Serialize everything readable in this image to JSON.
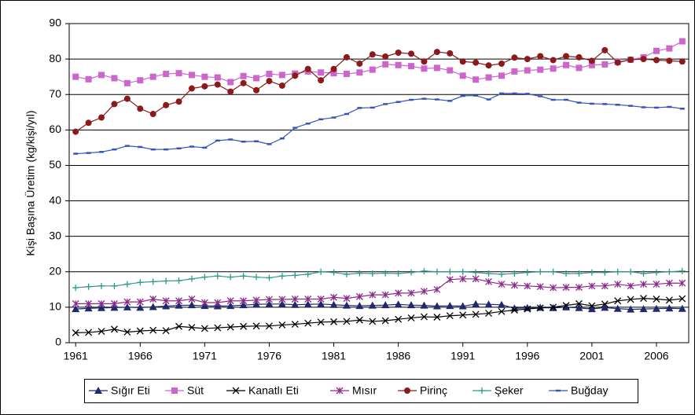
{
  "chart_data": {
    "type": "line",
    "y_label": "Kişi Başına Üretim (kg/kişi/yıl)",
    "x": [
      1961,
      1962,
      1963,
      1964,
      1965,
      1966,
      1967,
      1968,
      1969,
      1970,
      1971,
      1972,
      1973,
      1974,
      1975,
      1976,
      1977,
      1978,
      1979,
      1980,
      1981,
      1982,
      1983,
      1984,
      1985,
      1986,
      1987,
      1988,
      1989,
      1990,
      1991,
      1992,
      1993,
      1994,
      1995,
      1996,
      1997,
      1998,
      1999,
      2000,
      2001,
      2002,
      2003,
      2004,
      2005,
      2006,
      2007,
      2008
    ],
    "xlim": [
      1960.5,
      2008.5
    ],
    "xticks": [
      1961,
      1966,
      1971,
      1976,
      1981,
      1986,
      1991,
      1996,
      2001,
      2006
    ],
    "ylim": [
      0,
      90
    ],
    "yticks": [
      0,
      10,
      20,
      30,
      40,
      50,
      60,
      70,
      80,
      90
    ],
    "grid": true,
    "legend": "bottom",
    "series": [
      {
        "name": "Sığır Eti",
        "color": "#1f2a6e",
        "marker": "triangle",
        "values": [
          9.5,
          9.7,
          9.8,
          9.9,
          10.0,
          9.9,
          10.1,
          10.3,
          10.5,
          10.6,
          10.4,
          10.3,
          10.4,
          10.6,
          10.8,
          10.9,
          10.9,
          10.7,
          10.8,
          10.9,
          10.7,
          10.5,
          10.4,
          10.5,
          10.6,
          10.8,
          10.6,
          10.5,
          10.3,
          10.4,
          10.3,
          10.9,
          10.8,
          10.7,
          9.7,
          9.8,
          9.9,
          9.8,
          10.0,
          9.8,
          9.5,
          9.9,
          9.6,
          9.4,
          9.5,
          9.6,
          9.7,
          9.6
        ]
      },
      {
        "name": "Süt",
        "color": "#cc66cc",
        "marker": "square",
        "values": [
          75,
          74.3,
          75.5,
          74.6,
          73.2,
          74,
          75,
          75.8,
          76,
          75.5,
          75,
          74.8,
          73.5,
          75.2,
          74.6,
          75.8,
          75.5,
          75.9,
          76.5,
          76.2,
          76,
          75.8,
          76.2,
          77,
          78.5,
          78.3,
          78,
          77.3,
          77.5,
          76.8,
          75.3,
          74.2,
          74.8,
          75.3,
          76.5,
          76.8,
          77,
          77.3,
          78.3,
          77.5,
          78.3,
          78.5,
          79.2,
          79.8,
          80.5,
          82.3,
          83,
          85
        ]
      },
      {
        "name": "Kanatlı Eti",
        "color": "#000000",
        "marker": "x",
        "values": [
          2.8,
          2.9,
          3.2,
          3.8,
          3.0,
          3.3,
          3.5,
          3.4,
          4.6,
          4.3,
          4.0,
          4.2,
          4.4,
          4.6,
          4.7,
          4.7,
          5.0,
          5.2,
          5.5,
          5.8,
          5.9,
          6.0,
          6.4,
          6.0,
          6.2,
          6.6,
          7.0,
          7.3,
          7.2,
          7.6,
          7.8,
          8.0,
          8.3,
          8.8,
          9.2,
          9.5,
          9.8,
          10.0,
          10.5,
          11.0,
          10.4,
          10.9,
          11.8,
          12.2,
          12.5,
          12.3,
          12.0,
          12.4
        ]
      },
      {
        "name": "Mısır",
        "color": "#8b2a8b",
        "marker": "star",
        "values": [
          11,
          11,
          11,
          11,
          11.5,
          11.5,
          12.3,
          11.8,
          11.8,
          12.3,
          11.3,
          11.3,
          11.8,
          11.8,
          12,
          12.2,
          12.2,
          12.3,
          12.3,
          12.3,
          12.8,
          12.5,
          13,
          13.5,
          13.5,
          14,
          14,
          14.5,
          15,
          17.8,
          18,
          18,
          17.2,
          16.5,
          16.2,
          16,
          15.8,
          15.5,
          15.6,
          15.6,
          16,
          16,
          16.5,
          16,
          16.5,
          16.5,
          16.8,
          16.8
        ]
      },
      {
        "name": "Pirinç",
        "color": "#8b1a1a",
        "marker": "circle",
        "values": [
          59.5,
          62,
          63.5,
          67.3,
          68.8,
          66,
          64.5,
          67,
          68,
          71.7,
          72.3,
          72.8,
          70.8,
          73.2,
          71.2,
          73.8,
          72.5,
          75.3,
          77.2,
          74,
          77.2,
          80.5,
          78.7,
          81.3,
          80.7,
          81.8,
          81.5,
          79.3,
          82,
          81.6,
          79.3,
          79,
          78.2,
          78.7,
          80.4,
          80,
          80.8,
          79.7,
          80.8,
          80.5,
          79.5,
          82.5,
          79,
          79.8,
          80,
          79.7,
          79.5,
          79.3
        ]
      },
      {
        "name": "Şeker",
        "color": "#2a9a8a",
        "marker": "plus",
        "values": [
          15.5,
          15.8,
          16,
          16,
          16.5,
          17,
          17.2,
          17.4,
          17.5,
          18,
          18.5,
          18.8,
          18.5,
          18.8,
          18.5,
          18.3,
          18.8,
          19,
          19.3,
          20,
          19.8,
          19.3,
          19.6,
          19.5,
          19.6,
          19.5,
          19.8,
          20.2,
          20,
          20,
          20,
          19.8,
          19.5,
          19.3,
          19.5,
          19.8,
          20,
          20,
          19.5,
          19.5,
          19.8,
          19.8,
          20,
          20,
          19.5,
          19.8,
          20,
          20.2
        ]
      },
      {
        "name": "Buğday",
        "color": "#3355bb",
        "marker": "dash",
        "values": [
          53.3,
          53.5,
          53.8,
          54.5,
          55.5,
          55.2,
          54.5,
          54.5,
          54.8,
          55.3,
          55,
          57,
          57.3,
          56.7,
          56.8,
          56,
          57.6,
          60.6,
          61.8,
          63,
          63.5,
          64.5,
          66.2,
          66.3,
          67.3,
          67.9,
          68.5,
          68.8,
          68.6,
          68.2,
          69.6,
          69.7,
          68.6,
          70.3,
          70.3,
          70.2,
          69.5,
          68.5,
          68.5,
          67.7,
          67.4,
          67.3,
          67.1,
          66.8,
          66.4,
          66.3,
          66.5,
          66
        ]
      }
    ]
  }
}
